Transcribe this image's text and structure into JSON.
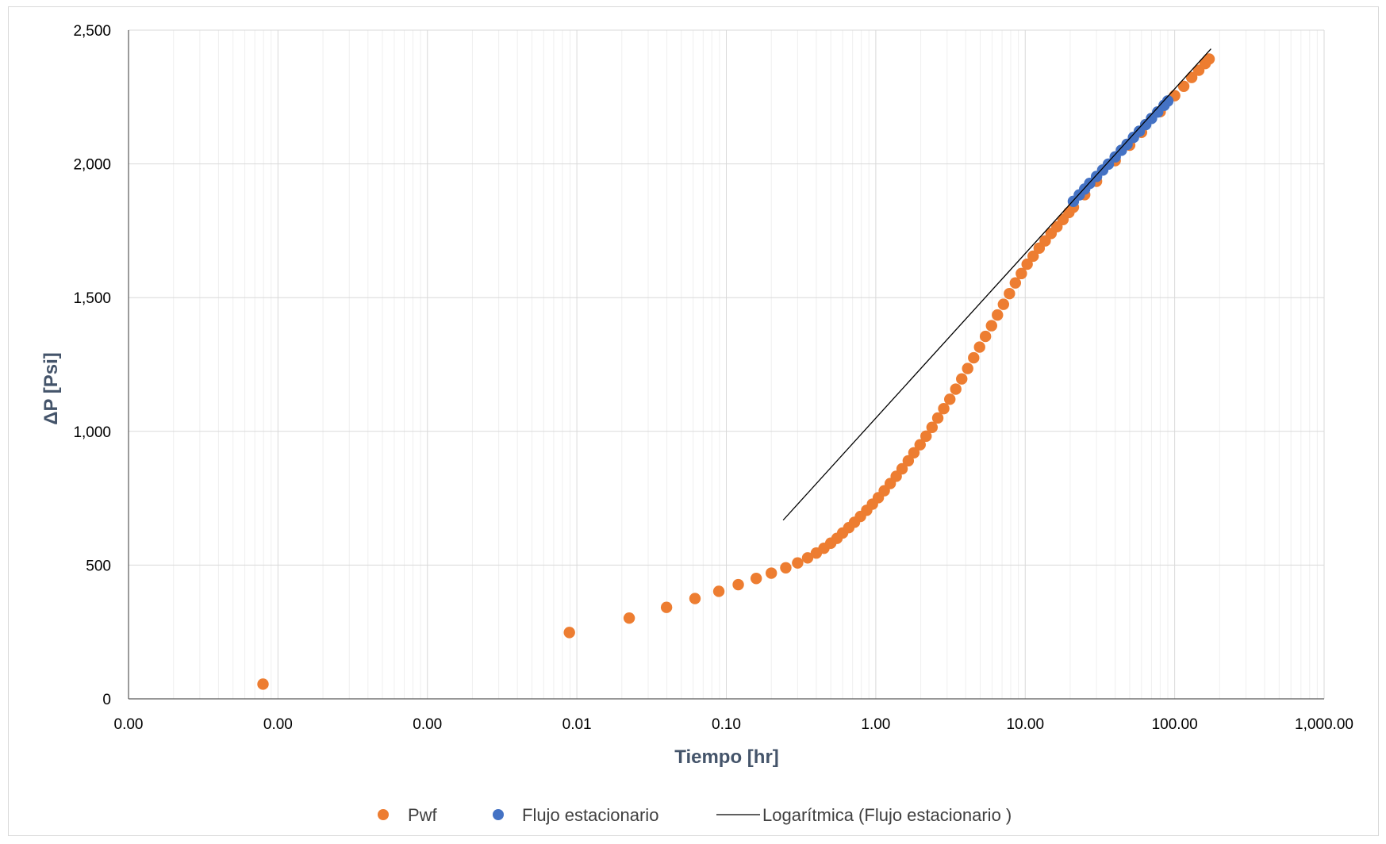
{
  "chart_data": {
    "type": "scatter",
    "title": "",
    "xlabel": "Tiempo [hr]",
    "ylabel": "ΔP [Psi]",
    "x_scale": "log",
    "x_tick_values": [
      1e-05,
      0.0001,
      0.001,
      0.01,
      0.1,
      1,
      10,
      100,
      1000
    ],
    "x_tick_labels": [
      "0.00",
      "0.00",
      "0.00",
      "0.01",
      "0.10",
      "1.00",
      "10.00",
      "100.00",
      "1,000.00"
    ],
    "xlim": [
      1e-05,
      1000
    ],
    "y_tick_values": [
      0,
      500,
      1000,
      1500,
      2000,
      2500
    ],
    "y_tick_labels": [
      "0",
      "500",
      "1,000",
      "1,500",
      "2,000",
      "2,500"
    ],
    "ylim": [
      0,
      2500
    ],
    "grid": true,
    "legend_position": "bottom",
    "colors": {
      "pwf": "#ed7d31",
      "flujo": "#4472c4",
      "trend": "#000000",
      "grid": "#e3e3e3",
      "axis_title": "#44546a"
    },
    "series": [
      {
        "name": "Pwf",
        "kind": "points",
        "x": [
          7.94e-05,
          0.00891,
          0.0224,
          0.0398,
          0.0617,
          0.0891,
          0.1202,
          0.1585,
          0.2,
          0.25,
          0.3,
          0.35,
          0.4,
          0.45,
          0.5,
          0.55,
          0.6,
          0.66,
          0.72,
          0.79,
          0.87,
          0.95,
          1.04,
          1.14,
          1.25,
          1.37,
          1.5,
          1.65,
          1.8,
          1.98,
          2.17,
          2.38,
          2.6,
          2.85,
          3.13,
          3.43,
          3.76,
          4.12,
          4.52,
          4.95,
          5.42,
          5.95,
          6.52,
          7.15,
          7.84,
          8.59,
          9.42,
          10.3,
          11.3,
          12.4,
          13.6,
          14.9,
          16.3,
          17.9,
          19.6,
          21,
          25,
          30,
          40,
          50,
          60,
          80,
          100,
          115,
          130,
          145,
          160,
          170
        ],
        "y": [
          55,
          248,
          302,
          342,
          375,
          402,
          427,
          450,
          470,
          490,
          508,
          527,
          545,
          563,
          582,
          600,
          620,
          640,
          660,
          682,
          705,
          728,
          752,
          778,
          805,
          832,
          860,
          890,
          920,
          950,
          982,
          1015,
          1050,
          1085,
          1120,
          1158,
          1196,
          1235,
          1275,
          1315,
          1355,
          1395,
          1435,
          1475,
          1515,
          1555,
          1590,
          1625,
          1655,
          1685,
          1712,
          1740,
          1765,
          1792,
          1818,
          1838,
          1885,
          1935,
          2012,
          2070,
          2118,
          2195,
          2255,
          2290,
          2323,
          2350,
          2375,
          2392
        ]
      },
      {
        "name": "Flujo estacionario",
        "kind": "points",
        "x": [
          21,
          23,
          25,
          27,
          30,
          33,
          36,
          40,
          44,
          48,
          53,
          58,
          64,
          70,
          77,
          85,
          90
        ],
        "y": [
          1860,
          1884,
          1906,
          1927,
          1953,
          1977,
          1999,
          2026,
          2051,
          2073,
          2099,
          2122,
          2147,
          2170,
          2194,
          2219,
          2235
        ]
      },
      {
        "name": "Logarítmica (Flujo estacionario )",
        "kind": "line",
        "x": [
          0.24,
          175
        ],
        "y": [
          668,
          2430
        ]
      }
    ]
  }
}
